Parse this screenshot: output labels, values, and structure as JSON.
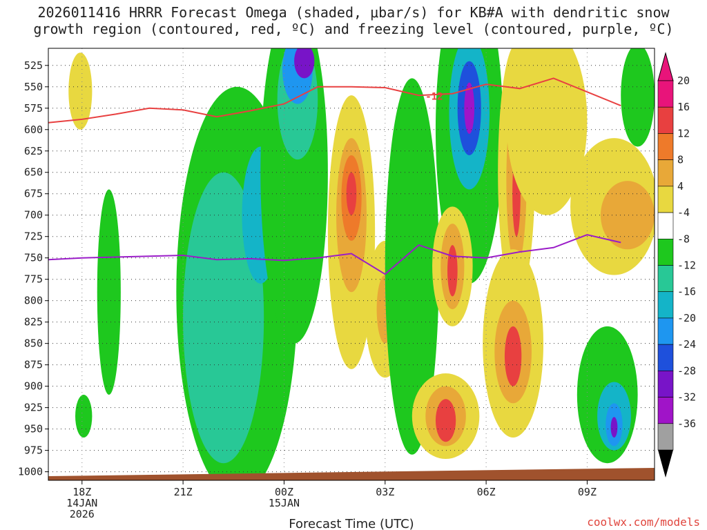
{
  "title_line1": "2026011416 HRRR Forecast Omega (shaded, μbar/s) for KB#A with dendritic snow",
  "title_line2": "growth region (contoured, red, ºC) and freezing level (contoured, purple, ºC)",
  "watermark": "coolwx.com/models",
  "chart_data": {
    "type": "heatmap",
    "xlabel": "Forecast Time (UTC)",
    "x_ticks": [
      {
        "hour": 1,
        "labels": [
          "18Z",
          "14JAN",
          "2026"
        ]
      },
      {
        "hour": 4,
        "labels": [
          "21Z"
        ]
      },
      {
        "hour": 7,
        "labels": [
          "00Z",
          "15JAN"
        ]
      },
      {
        "hour": 10,
        "labels": [
          "03Z"
        ]
      },
      {
        "hour": 13,
        "labels": [
          "06Z"
        ]
      },
      {
        "hour": 16,
        "labels": [
          "09Z"
        ]
      }
    ],
    "x_range_hours": [
      0,
      18
    ],
    "y_range_mb": [
      1010,
      505
    ],
    "y_ticks": [
      525,
      550,
      575,
      600,
      625,
      650,
      675,
      700,
      725,
      750,
      775,
      800,
      825,
      850,
      875,
      900,
      925,
      950,
      975,
      1000
    ],
    "colorbar_labels": [
      "20",
      "16",
      "12",
      "8",
      "4",
      "-4",
      "-8",
      "-12",
      "-16",
      "-20",
      "-24",
      "-28",
      "-32",
      "-36"
    ],
    "colorbar_colors": [
      "#e8147a",
      "#e84040",
      "#ee7a2a",
      "#e8a838",
      "#e8d840",
      "#ffffff",
      "#1ec81e",
      "#28c896",
      "#14b4c8",
      "#1e96f0",
      "#1e50dc",
      "#7814c8",
      "#a014c8",
      "#a0a0a0"
    ],
    "contour_label": "-12",
    "dgz_line_mb": [
      {
        "hour": 0,
        "mb": 592
      },
      {
        "hour": 1,
        "mb": 588
      },
      {
        "hour": 2,
        "mb": 582
      },
      {
        "hour": 3,
        "mb": 575
      },
      {
        "hour": 4,
        "mb": 577
      },
      {
        "hour": 5,
        "mb": 585
      },
      {
        "hour": 6,
        "mb": 578
      },
      {
        "hour": 7,
        "mb": 570
      },
      {
        "hour": 8,
        "mb": 550
      },
      {
        "hour": 9,
        "mb": 550
      },
      {
        "hour": 10,
        "mb": 551
      },
      {
        "hour": 11,
        "mb": 560
      },
      {
        "hour": 12,
        "mb": 558
      },
      {
        "hour": 13,
        "mb": 547
      },
      {
        "hour": 14,
        "mb": 552
      },
      {
        "hour": 15,
        "mb": 540
      },
      {
        "hour": 16,
        "mb": 556
      },
      {
        "hour": 17,
        "mb": 572
      }
    ],
    "freezing_line_mb": [
      {
        "hour": 0,
        "mb": 752
      },
      {
        "hour": 1,
        "mb": 750
      },
      {
        "hour": 2,
        "mb": 749
      },
      {
        "hour": 3,
        "mb": 748
      },
      {
        "hour": 4,
        "mb": 747
      },
      {
        "hour": 5,
        "mb": 752
      },
      {
        "hour": 6,
        "mb": 751
      },
      {
        "hour": 7,
        "mb": 753
      },
      {
        "hour": 8,
        "mb": 750
      },
      {
        "hour": 9,
        "mb": 745
      },
      {
        "hour": 10,
        "mb": 769
      },
      {
        "hour": 11,
        "mb": 735
      },
      {
        "hour": 12,
        "mb": 748
      },
      {
        "hour": 13,
        "mb": 750
      },
      {
        "hour": 14,
        "mb": 743
      },
      {
        "hour": 15,
        "mb": 738
      },
      {
        "hour": 16,
        "mb": 723
      },
      {
        "hour": 17,
        "mb": 732
      }
    ],
    "omega_regions": [
      {
        "hour": 0.95,
        "mb": 555,
        "rh": 0.35,
        "rmb": 45,
        "value": 6
      },
      {
        "hour": 1.8,
        "mb": 790,
        "rh": 0.35,
        "rmb": 120,
        "value": -6
      },
      {
        "hour": 1.05,
        "mb": 935,
        "rh": 0.25,
        "rmb": 25,
        "value": -6
      },
      {
        "hour": 5.6,
        "mb": 790,
        "rh": 1.8,
        "rmb": 240,
        "value": -6
      },
      {
        "hour": 5.2,
        "mb": 820,
        "rh": 1.2,
        "rmb": 170,
        "value": -10
      },
      {
        "hour": 6.3,
        "mb": 700,
        "rh": 0.55,
        "rmb": 80,
        "value": -14
      },
      {
        "hour": 7.3,
        "mb": 650,
        "rh": 1.0,
        "rmb": 200,
        "value": -6
      },
      {
        "hour": 7.4,
        "mb": 565,
        "rh": 0.6,
        "rmb": 70,
        "value": -10
      },
      {
        "hour": 7.4,
        "mb": 530,
        "rh": 0.45,
        "rmb": 40,
        "value": -18
      },
      {
        "hour": 7.6,
        "mb": 520,
        "rh": 0.3,
        "rmb": 20,
        "value": -26
      },
      {
        "hour": 9.0,
        "mb": 720,
        "rh": 0.7,
        "rmb": 160,
        "value": 6
      },
      {
        "hour": 9.0,
        "mb": 700,
        "rh": 0.45,
        "rmb": 90,
        "value": 10
      },
      {
        "hour": 9.0,
        "mb": 680,
        "rh": 0.3,
        "rmb": 50,
        "value": 14
      },
      {
        "hour": 9.0,
        "mb": 675,
        "rh": 0.15,
        "rmb": 25,
        "value": 18
      },
      {
        "hour": 10.0,
        "mb": 810,
        "rh": 0.6,
        "rmb": 80,
        "value": 6
      },
      {
        "hour": 10.0,
        "mb": 810,
        "rh": 0.25,
        "rmb": 40,
        "value": 10
      },
      {
        "hour": 10.8,
        "mb": 760,
        "rh": 0.8,
        "rmb": 220,
        "value": -6
      },
      {
        "hour": 12.5,
        "mb": 600,
        "rh": 1.0,
        "rmb": 180,
        "value": -6
      },
      {
        "hour": 12.5,
        "mb": 580,
        "rh": 0.6,
        "rmb": 90,
        "value": -12
      },
      {
        "hour": 12.5,
        "mb": 575,
        "rh": 0.35,
        "rmb": 55,
        "value": -22
      },
      {
        "hour": 12.5,
        "mb": 575,
        "rh": 0.15,
        "rmb": 30,
        "value": -30
      },
      {
        "hour": 13.9,
        "mb": 650,
        "rh": 0.55,
        "rmb": 150,
        "value": 6
      },
      {
        "hour": 13.9,
        "mb": 660,
        "rh": 0.3,
        "rmb": 100,
        "value": 10
      },
      {
        "hour": 13.9,
        "mb": 675,
        "rh": 0.12,
        "rmb": 50,
        "value": 16
      },
      {
        "hour": 12.0,
        "mb": 760,
        "rh": 0.6,
        "rmb": 70,
        "value": 6
      },
      {
        "hour": 12.0,
        "mb": 760,
        "rh": 0.35,
        "rmb": 50,
        "value": 10
      },
      {
        "hour": 12.0,
        "mb": 765,
        "rh": 0.15,
        "rmb": 30,
        "value": 18
      },
      {
        "hour": 11.8,
        "mb": 935,
        "rh": 1.0,
        "rmb": 50,
        "value": 6
      },
      {
        "hour": 11.8,
        "mb": 935,
        "rh": 0.6,
        "rmb": 35,
        "value": 10
      },
      {
        "hour": 11.8,
        "mb": 940,
        "rh": 0.3,
        "rmb": 25,
        "value": 18
      },
      {
        "hour": 13.8,
        "mb": 850,
        "rh": 0.9,
        "rmb": 110,
        "value": 6
      },
      {
        "hour": 13.8,
        "mb": 860,
        "rh": 0.55,
        "rmb": 60,
        "value": 10
      },
      {
        "hour": 13.8,
        "mb": 865,
        "rh": 0.25,
        "rmb": 35,
        "value": 18
      },
      {
        "hour": 16.8,
        "mb": 690,
        "rh": 1.3,
        "rmb": 80,
        "value": 6
      },
      {
        "hour": 17.2,
        "mb": 700,
        "rh": 0.8,
        "rmb": 40,
        "value": 10
      },
      {
        "hour": 16.6,
        "mb": 910,
        "rh": 0.9,
        "rmb": 80,
        "value": -6
      },
      {
        "hour": 16.8,
        "mb": 935,
        "rh": 0.5,
        "rmb": 40,
        "value": -12
      },
      {
        "hour": 16.8,
        "mb": 945,
        "rh": 0.25,
        "rmb": 25,
        "value": -18
      },
      {
        "hour": 16.8,
        "mb": 948,
        "rh": 0.1,
        "rmb": 12,
        "value": -24
      },
      {
        "hour": 14.8,
        "mb": 590,
        "rh": 1.2,
        "rmb": 110,
        "value": 6
      },
      {
        "hour": 17.5,
        "mb": 560,
        "rh": 0.5,
        "rmb": 60,
        "value": -6
      }
    ]
  }
}
